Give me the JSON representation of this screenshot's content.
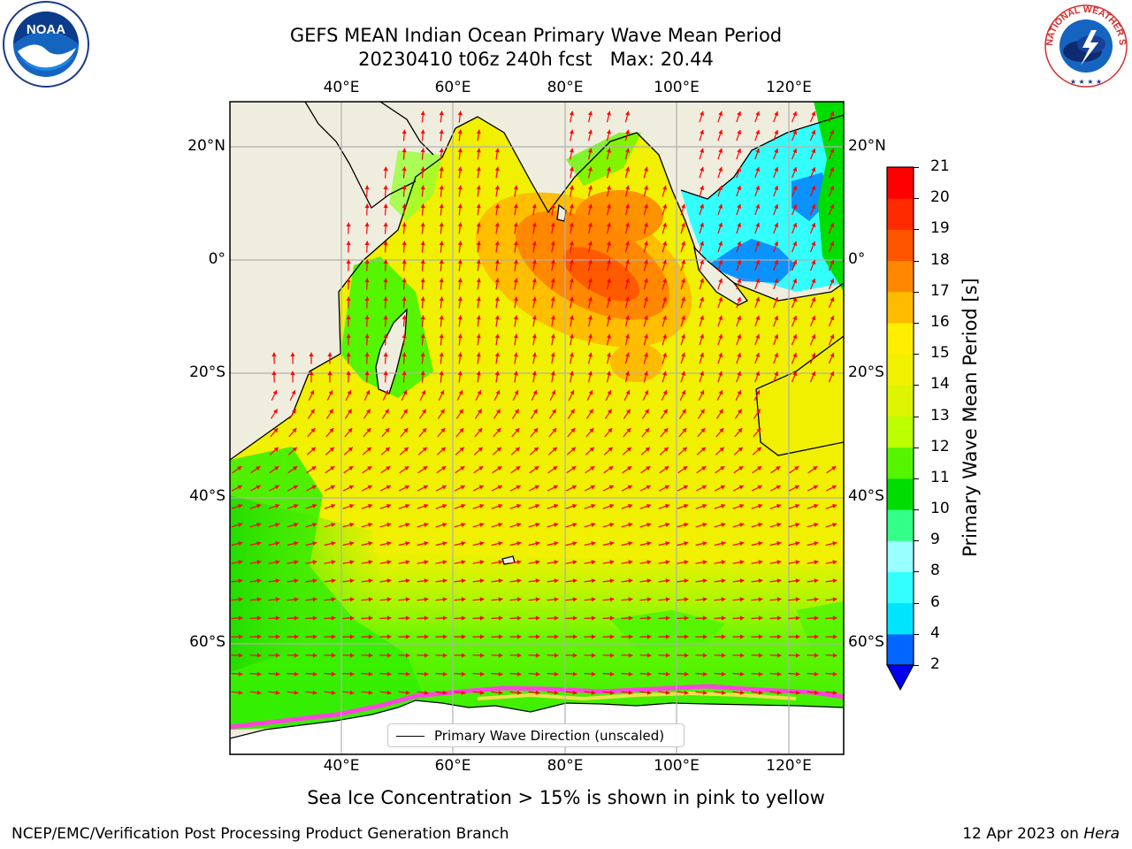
{
  "title_line1": "GEFS MEAN Indian Ocean Primary Wave Mean Period",
  "title_line2": "20230410 t06z 240h fcst   Max: 20.44",
  "lon_ticks": [
    "40°E",
    "60°E",
    "80°E",
    "100°E",
    "120°E"
  ],
  "lat_ticks_left": [
    "20°N",
    "0°",
    "20°S",
    "40°S",
    "60°S"
  ],
  "lat_ticks_right": [
    "20°N",
    "0°",
    "20°S",
    "40°S",
    "60°S"
  ],
  "colorbar": {
    "label": "Primary Wave Mean Period [s]",
    "ticks": [
      "2",
      "4",
      "6",
      "8",
      "9",
      "10",
      "11",
      "12",
      "13",
      "14",
      "15",
      "16",
      "17",
      "18",
      "19",
      "20",
      "21"
    ],
    "colors": [
      "#0066ff",
      "#00e5ff",
      "#33ffff",
      "#99ffff",
      "#33ff88",
      "#00dd00",
      "#55f500",
      "#bbff00",
      "#ddf500",
      "#f0f000",
      "#ffee00",
      "#ffbb00",
      "#ff8800",
      "#ff5500",
      "#ff2a00",
      "#ff0000"
    ],
    "extend_color": "#0000ee"
  },
  "legend_label": "Primary Wave Direction (unscaled)",
  "caption": "Sea Ice Concentration > 15% is shown in pink to yellow",
  "footer_left": "NCEP/EMC/Verification Post Processing Product Generation Branch",
  "footer_right_prefix": "12 Apr 2023 on ",
  "footer_right_host": "Hera",
  "logos": {
    "left": {
      "icon": "noaa-logo",
      "text": "NOAA"
    },
    "right": {
      "icon": "national-weather-service-logo",
      "text": "NATIONAL WEATHER SERVICE"
    }
  },
  "colors": {
    "land": "#efedde",
    "arrow": "#ff0000",
    "grid": "#b0b0b0"
  }
}
